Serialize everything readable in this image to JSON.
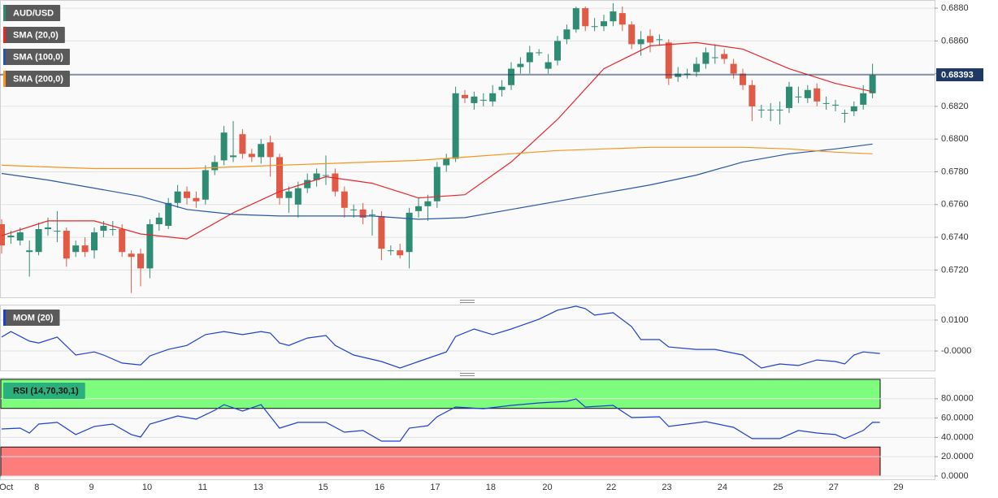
{
  "chart_data": [
    {
      "type": "candlestick",
      "name": "AUD/USD",
      "up_color": "#2f8c74",
      "down_color": "#e05a45",
      "open": [
        0.6748,
        0.674,
        0.6738,
        0.6731,
        0.6731,
        0.6745,
        0.6744,
        0.6744,
        0.6731,
        0.6735,
        0.6732,
        0.6744,
        0.6745,
        0.6745,
        0.673,
        0.673,
        0.6721,
        0.6748,
        0.6747,
        0.6761,
        0.6768,
        0.6764,
        0.6763,
        0.6781,
        0.6787,
        0.6789,
        0.6803,
        0.6791,
        0.6789,
        0.6798,
        0.6789,
        0.6764,
        0.676,
        0.677,
        0.6775,
        0.6778,
        0.6779,
        0.6768,
        0.6757,
        0.6757,
        0.6754,
        0.6753,
        0.6732,
        0.6732,
        0.6731,
        0.6756,
        0.6759,
        0.6762,
        0.6784,
        0.6788,
        0.6827,
        0.6822,
        0.6824,
        0.6823,
        0.683,
        0.6833,
        0.6844,
        0.6847,
        0.6853,
        0.6843,
        0.6848,
        0.6861,
        0.6867,
        0.688,
        0.6869,
        0.6869,
        0.6872,
        0.6877,
        0.687,
        0.6858,
        0.6863,
        0.6861,
        0.6859,
        0.6838,
        0.684,
        0.6841,
        0.6846,
        0.685,
        0.6852,
        0.6846,
        0.684,
        0.6833,
        0.6818,
        0.6818,
        0.6818,
        0.6819,
        0.6826,
        0.6825,
        0.6831,
        0.6822,
        0.6821,
        0.6816,
        0.6817,
        0.6821,
        0.6828
      ],
      "high": [
        0.6751,
        0.6744,
        0.6746,
        0.6738,
        0.6749,
        0.6752,
        0.6756,
        0.6746,
        0.6738,
        0.674,
        0.6746,
        0.675,
        0.675,
        0.6748,
        0.6732,
        0.6733,
        0.6751,
        0.6755,
        0.6764,
        0.6772,
        0.6771,
        0.6768,
        0.6784,
        0.679,
        0.6808,
        0.6811,
        0.6806,
        0.6794,
        0.68,
        0.6802,
        0.6791,
        0.6771,
        0.6774,
        0.6779,
        0.6782,
        0.679,
        0.6782,
        0.6771,
        0.676,
        0.6761,
        0.6757,
        0.6756,
        0.6735,
        0.6736,
        0.6758,
        0.6764,
        0.6766,
        0.6786,
        0.6791,
        0.6832,
        0.683,
        0.6829,
        0.6828,
        0.6833,
        0.6836,
        0.6847,
        0.685,
        0.6857,
        0.6855,
        0.6852,
        0.6863,
        0.687,
        0.6881,
        0.6881,
        0.6874,
        0.6876,
        0.6883,
        0.6881,
        0.6872,
        0.6866,
        0.6867,
        0.6864,
        0.6861,
        0.6844,
        0.6843,
        0.685,
        0.6856,
        0.6858,
        0.6855,
        0.6849,
        0.6843,
        0.6836,
        0.6821,
        0.6822,
        0.6823,
        0.6835,
        0.6832,
        0.6833,
        0.6834,
        0.6826,
        0.6824,
        0.6818,
        0.6823,
        0.6833,
        0.6846
      ],
      "low": [
        0.673,
        0.6736,
        0.6735,
        0.6716,
        0.6729,
        0.6741,
        0.6737,
        0.6722,
        0.6728,
        0.6728,
        0.6727,
        0.674,
        0.6741,
        0.6728,
        0.6706,
        0.671,
        0.6715,
        0.6744,
        0.6745,
        0.6758,
        0.676,
        0.6758,
        0.676,
        0.6778,
        0.6784,
        0.6786,
        0.6788,
        0.6786,
        0.6785,
        0.6777,
        0.676,
        0.6755,
        0.6752,
        0.6767,
        0.6771,
        0.6772,
        0.6765,
        0.6752,
        0.6752,
        0.6748,
        0.6741,
        0.6726,
        0.6729,
        0.6727,
        0.6721,
        0.6752,
        0.675,
        0.6758,
        0.678,
        0.6786,
        0.6822,
        0.6818,
        0.682,
        0.682,
        0.6826,
        0.683,
        0.684,
        0.684,
        0.6851,
        0.684,
        0.6845,
        0.6858,
        0.6865,
        0.6866,
        0.6866,
        0.6866,
        0.6869,
        0.6866,
        0.6855,
        0.6851,
        0.6853,
        0.6857,
        0.6833,
        0.6835,
        0.6837,
        0.6838,
        0.6843,
        0.6846,
        0.6846,
        0.6837,
        0.683,
        0.6811,
        0.6813,
        0.6811,
        0.6809,
        0.6816,
        0.6822,
        0.6822,
        0.682,
        0.6818,
        0.6817,
        0.681,
        0.6814,
        0.6818,
        0.6825
      ],
      "close": [
        0.6735,
        0.6741,
        0.6743,
        0.6732,
        0.6745,
        0.6746,
        0.6744,
        0.6727,
        0.6735,
        0.6731,
        0.6743,
        0.6747,
        0.6745,
        0.6731,
        0.6728,
        0.6721,
        0.6748,
        0.6752,
        0.6761,
        0.6768,
        0.6764,
        0.6762,
        0.6781,
        0.6786,
        0.6804,
        0.679,
        0.6791,
        0.6789,
        0.6797,
        0.6789,
        0.6764,
        0.6768,
        0.677,
        0.6775,
        0.6779,
        0.6778,
        0.6768,
        0.6758,
        0.6757,
        0.6752,
        0.6754,
        0.6733,
        0.6732,
        0.6729,
        0.6755,
        0.6759,
        0.6762,
        0.6783,
        0.6788,
        0.6828,
        0.6825,
        0.6826,
        0.6824,
        0.6828,
        0.6832,
        0.6843,
        0.6846,
        0.6853,
        0.6853,
        0.6847,
        0.686,
        0.6867,
        0.688,
        0.6869,
        0.6869,
        0.6872,
        0.6878,
        0.687,
        0.6858,
        0.6861,
        0.6859,
        0.6861,
        0.6837,
        0.684,
        0.684,
        0.6846,
        0.6853,
        0.685,
        0.6849,
        0.684,
        0.6833,
        0.682,
        0.6818,
        0.6818,
        0.6818,
        0.6832,
        0.6826,
        0.683,
        0.6823,
        0.6822,
        0.6821,
        0.6816,
        0.682,
        0.6828,
        0.6839
      ],
      "series": [
        {
          "name": "SMA (20,0)",
          "color": "#e8262a",
          "x": [
            0,
            5,
            10,
            15,
            20,
            25,
            30,
            35,
            40,
            45,
            50,
            55,
            60,
            65,
            70,
            75,
            80,
            85,
            90,
            94
          ],
          "values": [
            0.6741,
            0.675,
            0.675,
            0.6742,
            0.6739,
            0.6755,
            0.6768,
            0.6777,
            0.6773,
            0.6764,
            0.6766,
            0.6786,
            0.6812,
            0.6843,
            0.6857,
            0.6859,
            0.6855,
            0.6843,
            0.6834,
            0.6829
          ]
        },
        {
          "name": "SMA (100,0)",
          "color": "#2957a4",
          "x": [
            0,
            5,
            10,
            15,
            20,
            25,
            30,
            35,
            40,
            45,
            50,
            55,
            60,
            65,
            70,
            75,
            80,
            85,
            90,
            94
          ],
          "values": [
            0.6779,
            0.6775,
            0.677,
            0.6765,
            0.6757,
            0.6754,
            0.6753,
            0.6753,
            0.6753,
            0.6751,
            0.6752,
            0.6757,
            0.6762,
            0.6767,
            0.6772,
            0.6778,
            0.6786,
            0.6791,
            0.6794,
            0.6797
          ]
        },
        {
          "name": "SMA (200,0)",
          "color": "#f7941d",
          "x": [
            0,
            5,
            10,
            15,
            20,
            25,
            30,
            35,
            40,
            45,
            50,
            55,
            60,
            65,
            70,
            75,
            80,
            85,
            90,
            94
          ],
          "values": [
            0.6784,
            0.6783,
            0.6782,
            0.6782,
            0.6782,
            0.6783,
            0.6784,
            0.6785,
            0.6786,
            0.6787,
            0.6789,
            0.6791,
            0.6793,
            0.6794,
            0.6795,
            0.6795,
            0.6795,
            0.6794,
            0.6792,
            0.6791
          ]
        }
      ],
      "last_price": 0.68393,
      "last_price_color": "#1f3864",
      "xlim": [
        -0.175,
        100.7
      ],
      "ylim": [
        0.67033,
        0.6885
      ],
      "yticks": [
        {
          "value": 0.672,
          "label": "0.6720"
        },
        {
          "value": 0.674,
          "label": "0.6740"
        },
        {
          "value": 0.676,
          "label": "0.6760"
        },
        {
          "value": 0.678,
          "label": "0.6780"
        },
        {
          "value": 0.68,
          "label": "0.6800"
        },
        {
          "value": 0.682,
          "label": "0.6820"
        },
        {
          "value": 0.684,
          "label": "0.6840"
        },
        {
          "value": 0.686,
          "label": "0.6860"
        },
        {
          "value": 0.688,
          "label": "0.6880"
        }
      ],
      "grid": true
    },
    {
      "type": "line",
      "series": [
        {
          "name": "MOM (20)",
          "color": "#1f3fd1",
          "x": [
            0,
            1,
            3,
            4,
            6,
            8,
            10,
            11,
            13,
            15,
            16,
            18,
            20,
            22,
            24,
            26,
            28,
            29,
            30,
            31,
            33,
            35,
            36,
            38,
            41,
            43,
            45,
            48,
            49,
            51,
            53,
            55,
            58,
            60,
            62,
            63,
            64,
            66,
            68,
            69,
            71,
            72,
            75,
            77,
            80,
            82,
            84,
            86,
            88,
            90,
            91,
            92,
            93,
            94.8
          ],
          "values": [
            0.0045,
            0.0063,
            0.0032,
            0.0026,
            0.0045,
            -0.0013,
            -0.0003,
            -0.0013,
            -0.0039,
            -0.0045,
            -0.0016,
            0.0005,
            0.0018,
            0.0053,
            0.0063,
            0.0053,
            0.0063,
            0.0058,
            0.0026,
            0.0018,
            0.0042,
            0.005,
            0.0018,
            -0.0013,
            -0.0034,
            -0.0055,
            -0.0034,
            -0.0003,
            0.0047,
            0.0071,
            0.0053,
            0.0071,
            0.0103,
            0.0132,
            0.0145,
            0.0137,
            0.0116,
            0.0124,
            0.0079,
            0.0037,
            0.0037,
            0.0013,
            0.0005,
            0.0005,
            -0.0013,
            -0.0055,
            -0.0042,
            -0.0047,
            -0.0029,
            -0.0034,
            -0.0042,
            -0.0013,
            -0.0003,
            -0.0008
          ]
        }
      ],
      "xlim": [
        -0.175,
        100.7
      ],
      "ylim": [
        -0.0063,
        0.015
      ],
      "yticks": [
        {
          "value": 0,
          "label": "-0.0000"
        },
        {
          "value": 0.01,
          "label": "0.0100"
        }
      ],
      "grid": true
    },
    {
      "type": "line",
      "series": [
        {
          "name": "RSI (14,70,30,1)",
          "color": "#1f3fd1",
          "x": [
            0,
            2,
            3,
            4,
            6,
            8,
            10,
            12,
            14,
            15,
            16,
            19,
            21,
            23,
            24,
            26,
            28,
            30,
            32,
            35,
            37,
            39,
            41,
            43,
            44,
            46,
            47,
            49,
            52,
            55,
            58,
            61,
            62,
            63,
            66,
            68,
            71,
            72,
            76,
            79,
            81,
            84,
            86,
            88,
            90,
            91,
            93,
            94,
            94.8
          ],
          "values": [
            48.7,
            49.6,
            44.5,
            53.8,
            55.5,
            42.9,
            51.3,
            53.8,
            42.9,
            40.3,
            53.8,
            62.2,
            58.8,
            68.1,
            73.9,
            67.2,
            73.9,
            49.6,
            55.5,
            55.5,
            45.4,
            47.1,
            36.1,
            36.1,
            49.6,
            52.1,
            61.3,
            71.4,
            69.7,
            73.1,
            75.6,
            77.3,
            79.8,
            71.4,
            73.1,
            60.5,
            61.3,
            51.3,
            56.3,
            50.4,
            38.7,
            38.7,
            47.1,
            44.5,
            42.9,
            38.7,
            47.1,
            55.5,
            55.5
          ]
        }
      ],
      "overbought": 70,
      "overbought_color": "#7dfc7d",
      "oversold": 30,
      "oversold_color": "#fd7d7d",
      "xlim": [
        -0.175,
        100.7
      ],
      "ylim": [
        -3.4,
        101.7
      ],
      "yticks": [
        {
          "value": 0,
          "label": "0.0000"
        },
        {
          "value": 20,
          "label": "20.0000"
        },
        {
          "value": 40,
          "label": "40.0000"
        },
        {
          "value": 60,
          "label": "60.0000"
        },
        {
          "value": 80,
          "label": "80.0000"
        }
      ],
      "xticks": [
        {
          "value": 0.5,
          "label": "Oct"
        },
        {
          "value": 3.8,
          "label": "8"
        },
        {
          "value": 9.7,
          "label": "9"
        },
        {
          "value": 15.7,
          "label": "10"
        },
        {
          "value": 21.7,
          "label": "11"
        },
        {
          "value": 27.7,
          "label": "13"
        },
        {
          "value": 34.7,
          "label": "15"
        },
        {
          "value": 40.8,
          "label": "16"
        },
        {
          "value": 46.8,
          "label": "17"
        },
        {
          "value": 52.8,
          "label": "18"
        },
        {
          "value": 58.9,
          "label": "20"
        },
        {
          "value": 65.8,
          "label": "22"
        },
        {
          "value": 71.8,
          "label": "23"
        },
        {
          "value": 77.8,
          "label": "24"
        },
        {
          "value": 83.8,
          "label": "25"
        },
        {
          "value": 89.8,
          "label": "27"
        },
        {
          "value": 96.8,
          "label": "29"
        }
      ],
      "grid": true
    }
  ]
}
